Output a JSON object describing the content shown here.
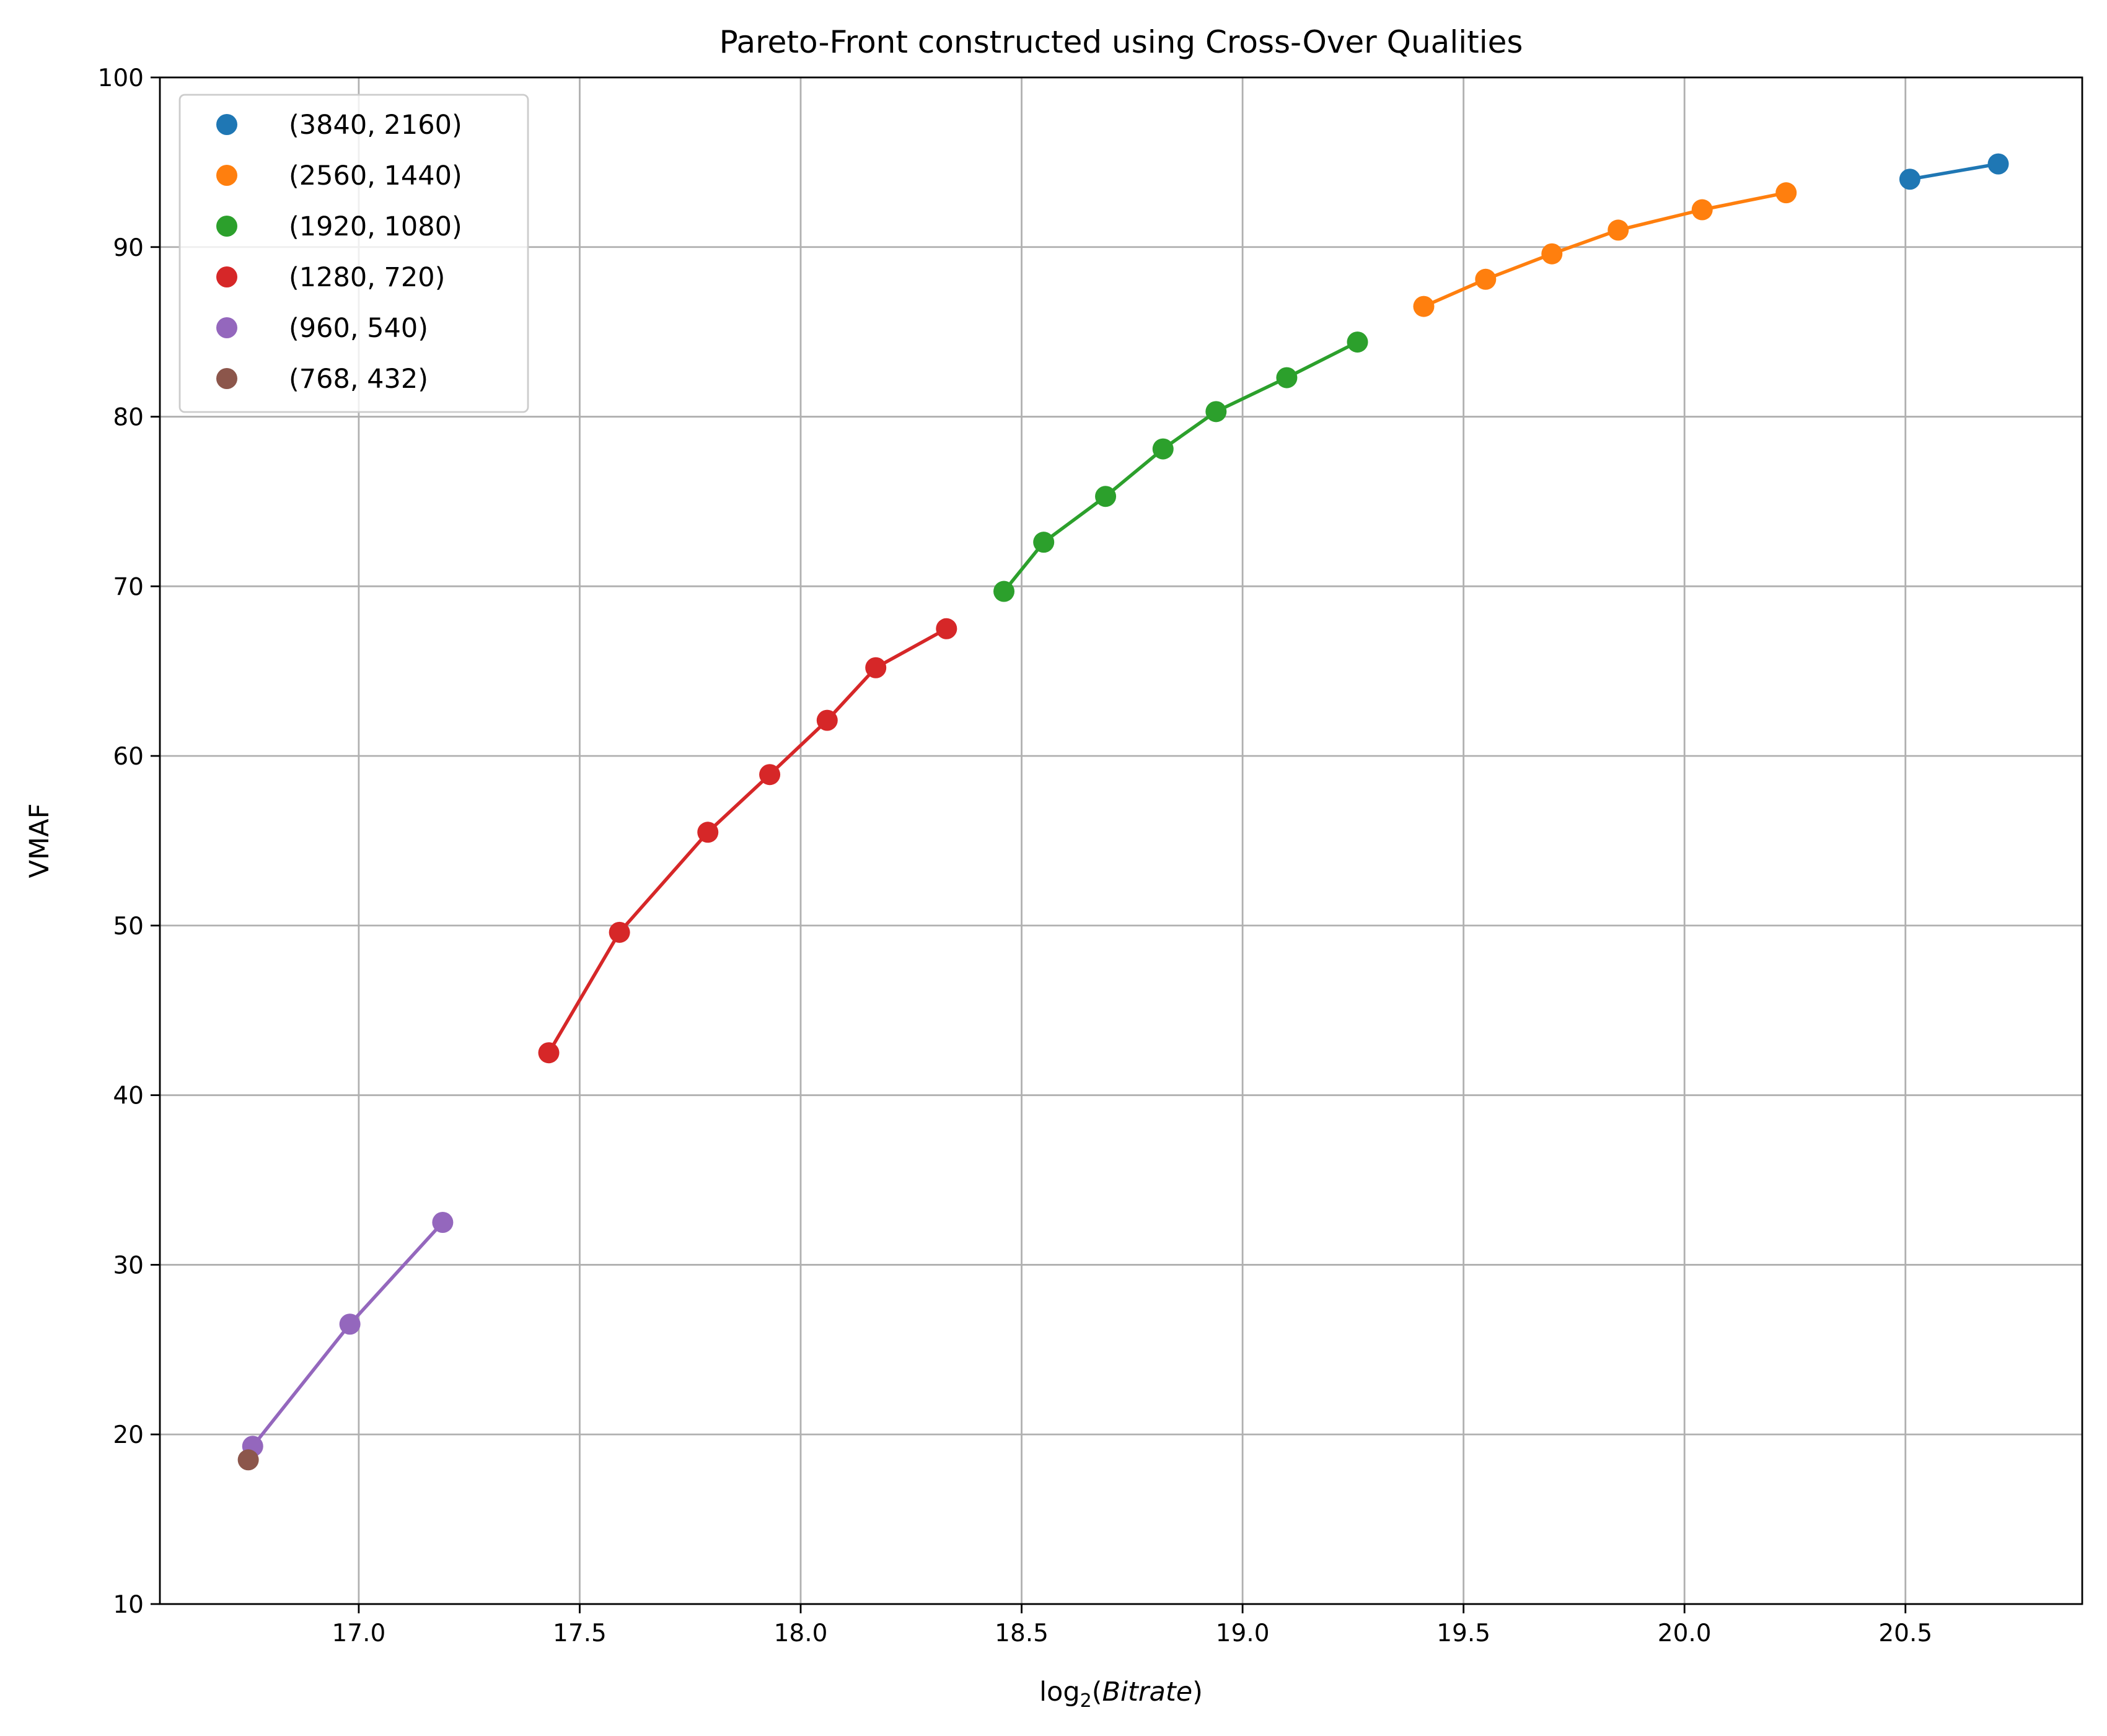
{
  "chart_data": {
    "type": "line",
    "title": "Pareto-Front constructed using Cross-Over Qualities",
    "xlabel": "log",
    "xlabel_subscript": "2",
    "xlabel_arg": "Bitrate",
    "ylabel": "VMAF",
    "xlim": [
      16.55,
      20.9
    ],
    "ylim": [
      10,
      100
    ],
    "x_ticks": [
      17.0,
      17.5,
      18.0,
      18.5,
      19.0,
      19.5,
      20.0,
      20.5
    ],
    "x_tick_labels": [
      "17.0",
      "17.5",
      "18.0",
      "18.5",
      "19.0",
      "19.5",
      "20.0",
      "20.5"
    ],
    "y_ticks": [
      10,
      20,
      30,
      40,
      50,
      60,
      70,
      80,
      90,
      100
    ],
    "y_tick_labels": [
      "10",
      "20",
      "30",
      "40",
      "50",
      "60",
      "70",
      "80",
      "90",
      "100"
    ],
    "grid": true,
    "legend_position": "top-left",
    "series": [
      {
        "name": "(3840, 2160)",
        "color": "#1f77b4",
        "x": [
          20.51,
          20.71
        ],
        "y": [
          94.0,
          94.9
        ]
      },
      {
        "name": "(2560, 1440)",
        "color": "#ff7f0e",
        "x": [
          19.41,
          19.55,
          19.7,
          19.85,
          20.04,
          20.23
        ],
        "y": [
          86.5,
          88.1,
          89.6,
          91.0,
          92.2,
          93.2
        ]
      },
      {
        "name": "(1920, 1080)",
        "color": "#2ca02c",
        "x": [
          18.46,
          18.55,
          18.69,
          18.82,
          18.94,
          19.1,
          19.26
        ],
        "y": [
          69.7,
          72.6,
          75.3,
          78.1,
          80.3,
          82.3,
          84.4
        ]
      },
      {
        "name": "(1280, 720)",
        "color": "#d62728",
        "x": [
          17.43,
          17.59,
          17.79,
          17.93,
          18.06,
          18.17,
          18.33
        ],
        "y": [
          42.5,
          49.6,
          55.5,
          58.9,
          62.1,
          65.2,
          67.5
        ]
      },
      {
        "name": "(960, 540)",
        "color": "#9467bd",
        "x": [
          16.76,
          16.98,
          17.19
        ],
        "y": [
          19.3,
          26.5,
          32.5
        ]
      },
      {
        "name": "(768, 432)",
        "color": "#8c564b",
        "x": [
          16.75
        ],
        "y": [
          18.5
        ]
      }
    ]
  }
}
